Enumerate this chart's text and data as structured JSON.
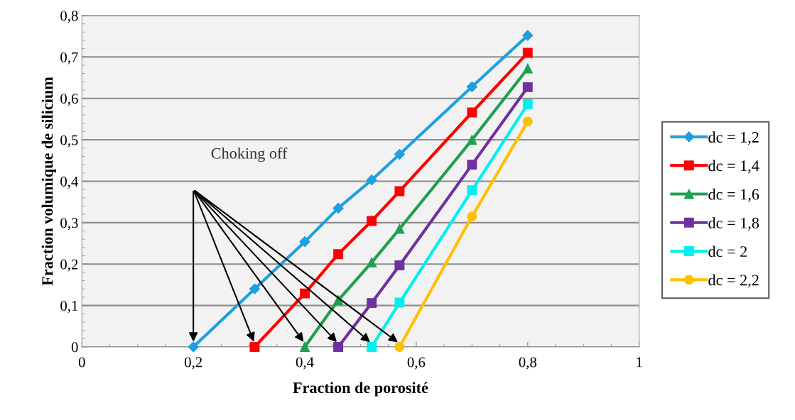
{
  "chart_data": {
    "type": "line",
    "xlabel": "Fraction de porosité",
    "ylabel": "Fraction volumique de silicium",
    "xlim": [
      0,
      1
    ],
    "xticks": [
      0,
      {
        "value": 0.2,
        "label": "0,2"
      },
      {
        "value": 0.4,
        "label": "0,4"
      },
      {
        "value": 0.6,
        "label": "0,6"
      },
      {
        "value": 0.8,
        "label": "0,8"
      },
      1
    ],
    "ylim": [
      0,
      0.8
    ],
    "yticks": [
      0,
      {
        "value": 0.1,
        "label": "0,1"
      },
      {
        "value": 0.2,
        "label": "0,2"
      },
      {
        "value": 0.3,
        "label": "0,3"
      },
      {
        "value": 0.4,
        "label": "0,4"
      },
      {
        "value": 0.5,
        "label": "0,5"
      },
      {
        "value": 0.6,
        "label": "0,6"
      },
      {
        "value": 0.7,
        "label": "0,7"
      },
      {
        "value": 0.8,
        "label": "0,8"
      }
    ],
    "grid": "y",
    "legend": "right",
    "annotations": [
      "Choking off"
    ],
    "series": [
      {
        "name": "dc = 1,2",
        "color": "#1f9fe0",
        "marker": "diamond",
        "x": [
          0.2,
          0.31,
          0.4,
          0.46,
          0.52,
          0.57,
          0.7,
          0.8
        ],
        "values": [
          0,
          0.14,
          0.254,
          0.335,
          0.403,
          0.465,
          0.628,
          0.752
        ]
      },
      {
        "name": "dc = 1,4",
        "color": "#ff0000",
        "marker": "square",
        "x": [
          0.31,
          0.4,
          0.46,
          0.52,
          0.57,
          0.7,
          0.8
        ],
        "values": [
          0,
          0.129,
          0.224,
          0.304,
          0.376,
          0.566,
          0.71
        ]
      },
      {
        "name": "dc = 1,6",
        "color": "#1ea050",
        "marker": "triangle",
        "x": [
          0.4,
          0.46,
          0.52,
          0.57,
          0.7,
          0.8
        ],
        "values": [
          0,
          0.113,
          0.204,
          0.285,
          0.5,
          0.672
        ]
      },
      {
        "name": "dc = 1,8",
        "color": "#7030a0",
        "marker": "square",
        "x": [
          0.46,
          0.52,
          0.57,
          0.7,
          0.8
        ],
        "values": [
          0,
          0.106,
          0.197,
          0.44,
          0.627
        ]
      },
      {
        "name": "dc = 2",
        "color": "#00f0f0",
        "marker": "square",
        "x": [
          0.52,
          0.57,
          0.7,
          0.8
        ],
        "values": [
          0,
          0.107,
          0.378,
          0.586
        ]
      },
      {
        "name": "dc = 2,2",
        "color": "#ffc000",
        "marker": "circle",
        "x": [
          0.57,
          0.7,
          0.8
        ],
        "values": [
          0,
          0.315,
          0.544
        ]
      }
    ]
  }
}
